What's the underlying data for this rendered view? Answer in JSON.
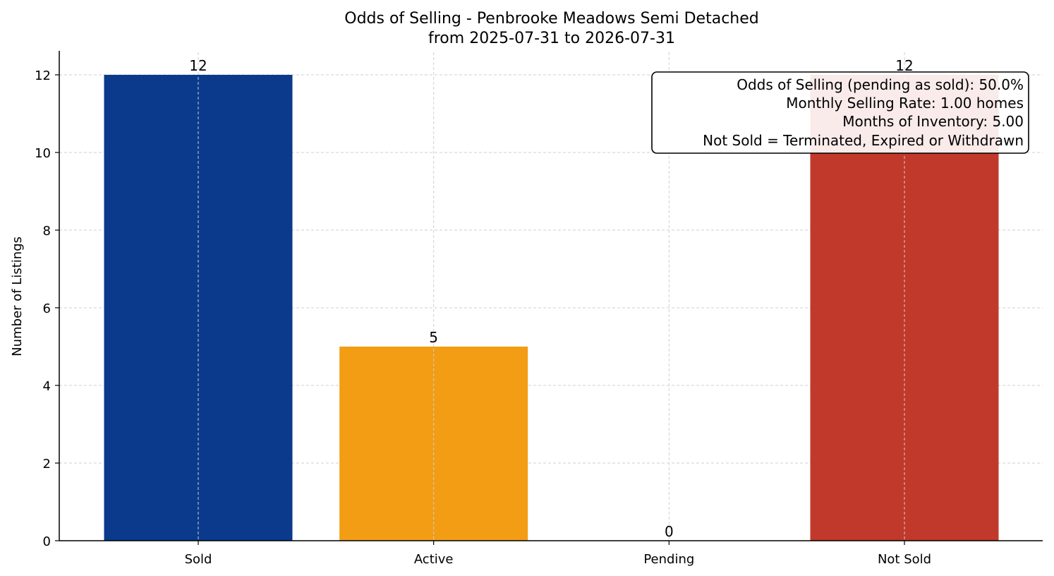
{
  "chart_data": {
    "type": "bar",
    "title": "Odds of Selling - Penbrooke Meadows Semi Detached",
    "subtitle": "from 2025-07-31 to 2026-07-31",
    "xlabel": "",
    "ylabel": "Number of Listings",
    "categories": [
      "Sold",
      "Active",
      "Pending",
      "Not Sold"
    ],
    "values": [
      12,
      5,
      0,
      12
    ],
    "colors": [
      "#0b3a8c",
      "#f29d14",
      "#2e8b57",
      "#c0392b"
    ],
    "data_labels": [
      "12",
      "5",
      "0",
      "12"
    ],
    "ylim": [
      0,
      12.6
    ],
    "yticks": [
      0,
      2,
      4,
      6,
      8,
      10,
      12
    ],
    "ytick_labels": [
      "0",
      "2",
      "4",
      "6",
      "8",
      "10",
      "12"
    ],
    "grid": true,
    "annotation": {
      "placement": "top-right",
      "lines": [
        "Odds of Selling (pending as sold): 50.0%",
        "Monthly Selling Rate: 1.00 homes",
        "Months of Inventory: 5.00",
        "Not Sold = Terminated, Expired or Withdrawn"
      ]
    }
  }
}
